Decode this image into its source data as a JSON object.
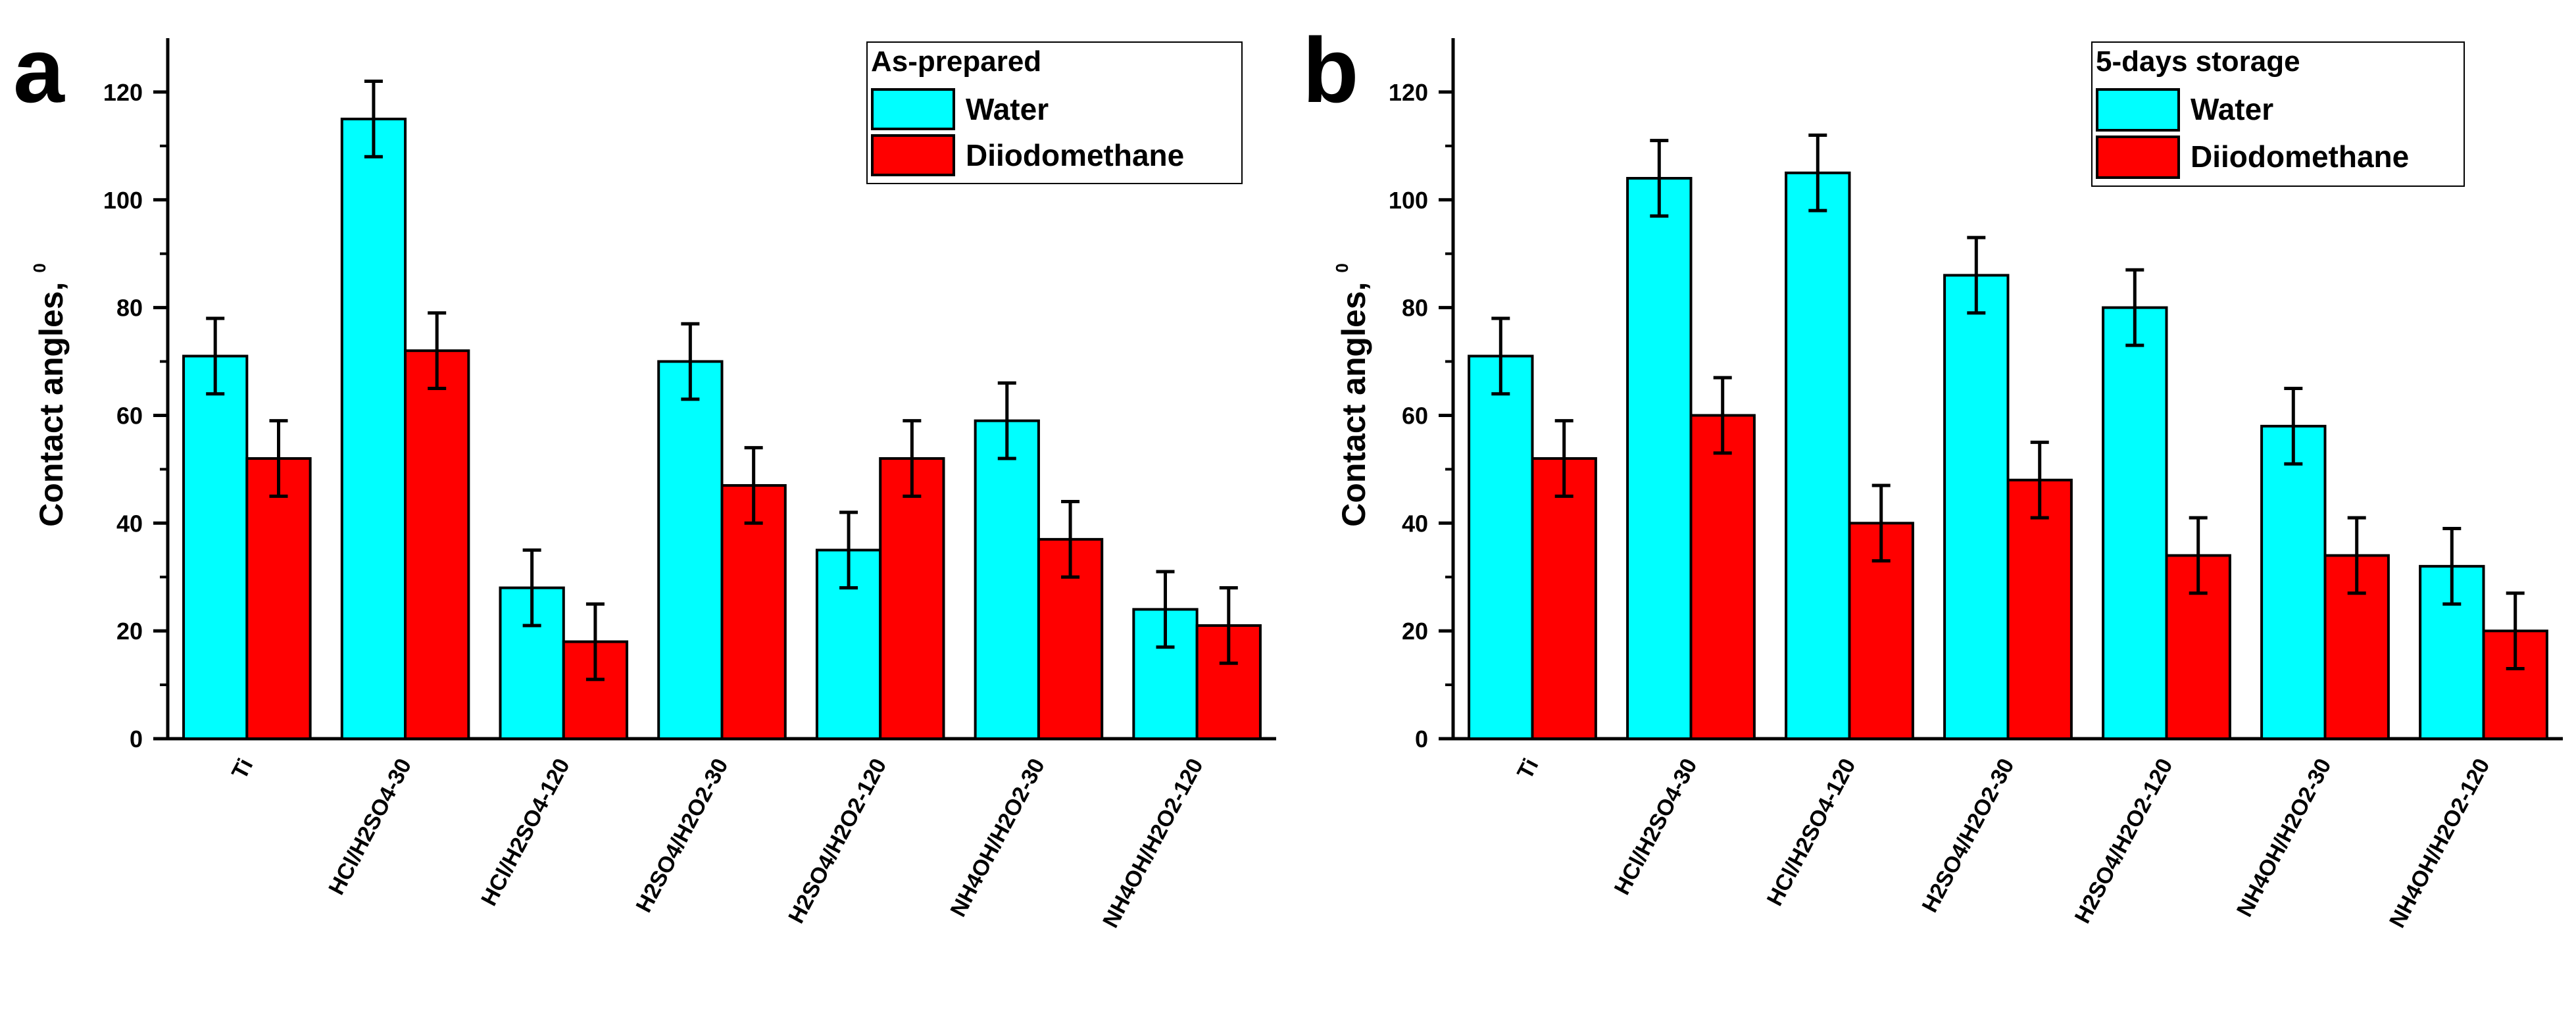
{
  "chart_data": [
    {
      "panel": "a",
      "type": "bar",
      "ylabel": "Contact angles,",
      "ylabel_superscript": "0",
      "ylim": [
        0,
        130
      ],
      "yticks": [
        0,
        20,
        40,
        60,
        80,
        100,
        120
      ],
      "categories": [
        "Ti",
        "HCl/H2SO4-30",
        "HCl/H2SO4-120",
        "H2SO4/H2O2-30",
        "H2SO4/H2O2-120",
        "NH4OH/H2O2-30",
        "NH4OH/H2O2-120"
      ],
      "legend_title": "As-prepared",
      "series": [
        {
          "name": "Water",
          "color": "#00ffff",
          "values": [
            71,
            115,
            28,
            70,
            35,
            59,
            24
          ],
          "errors": [
            7,
            7,
            7,
            7,
            7,
            7,
            7
          ]
        },
        {
          "name": "Diiodomethane",
          "color": "#ff0000",
          "values": [
            52,
            72,
            18,
            47,
            52,
            37,
            21
          ],
          "errors": [
            7,
            7,
            7,
            7,
            7,
            7,
            7
          ]
        }
      ]
    },
    {
      "panel": "b",
      "type": "bar",
      "ylabel": "Contact angles,",
      "ylabel_superscript": "0",
      "ylim": [
        0,
        130
      ],
      "yticks": [
        0,
        20,
        40,
        60,
        80,
        100,
        120
      ],
      "categories": [
        "Ti",
        "HCl/H2SO4-30",
        "HCl/H2SO4-120",
        "H2SO4/H2O2-30",
        "H2SO4/H2O2-120",
        "NH4OH/H2O2-30",
        "NH4OH/H2O2-120"
      ],
      "legend_title": "5-days storage",
      "series": [
        {
          "name": "Water",
          "color": "#00ffff",
          "values": [
            71,
            104,
            105,
            86,
            80,
            58,
            32
          ],
          "errors": [
            7,
            7,
            7,
            7,
            7,
            7,
            7
          ]
        },
        {
          "name": "Diiodomethane",
          "color": "#ff0000",
          "values": [
            52,
            60,
            40,
            48,
            34,
            34,
            20
          ],
          "errors": [
            7,
            7,
            7,
            7,
            7,
            7,
            7
          ]
        }
      ]
    }
  ]
}
